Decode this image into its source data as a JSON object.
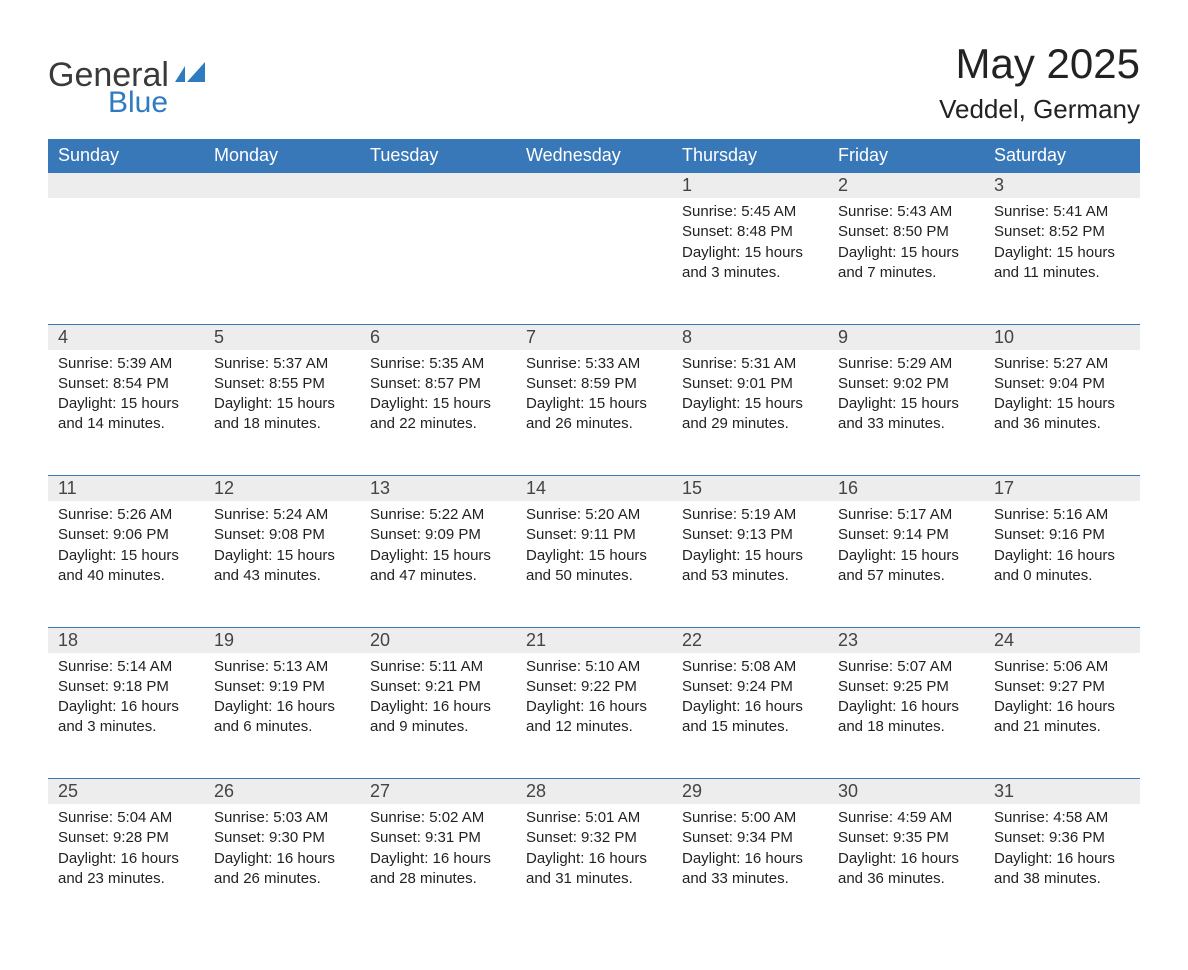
{
  "brand": {
    "part1": "General",
    "part2": "Blue",
    "color1": "#3a3a3a",
    "color2": "#2e7bc0"
  },
  "title": "May 2025",
  "location": "Veddel, Germany",
  "theme": {
    "header_bg": "#3878b8",
    "header_fg": "#ffffff",
    "daynum_bg": "#ededed",
    "rule_color": "#3878b8",
    "body_bg": "#ffffff",
    "text_color": "#222222",
    "font_title": 42,
    "font_location": 26,
    "font_dayhdr": 18,
    "font_daynum": 18,
    "font_body": 15
  },
  "day_headers": [
    "Sunday",
    "Monday",
    "Tuesday",
    "Wednesday",
    "Thursday",
    "Friday",
    "Saturday"
  ],
  "weeks": [
    [
      null,
      null,
      null,
      null,
      {
        "n": "1",
        "sunrise": "5:45 AM",
        "sunset": "8:48 PM",
        "daylight": "15 hours and 3 minutes."
      },
      {
        "n": "2",
        "sunrise": "5:43 AM",
        "sunset": "8:50 PM",
        "daylight": "15 hours and 7 minutes."
      },
      {
        "n": "3",
        "sunrise": "5:41 AM",
        "sunset": "8:52 PM",
        "daylight": "15 hours and 11 minutes."
      }
    ],
    [
      {
        "n": "4",
        "sunrise": "5:39 AM",
        "sunset": "8:54 PM",
        "daylight": "15 hours and 14 minutes."
      },
      {
        "n": "5",
        "sunrise": "5:37 AM",
        "sunset": "8:55 PM",
        "daylight": "15 hours and 18 minutes."
      },
      {
        "n": "6",
        "sunrise": "5:35 AM",
        "sunset": "8:57 PM",
        "daylight": "15 hours and 22 minutes."
      },
      {
        "n": "7",
        "sunrise": "5:33 AM",
        "sunset": "8:59 PM",
        "daylight": "15 hours and 26 minutes."
      },
      {
        "n": "8",
        "sunrise": "5:31 AM",
        "sunset": "9:01 PM",
        "daylight": "15 hours and 29 minutes."
      },
      {
        "n": "9",
        "sunrise": "5:29 AM",
        "sunset": "9:02 PM",
        "daylight": "15 hours and 33 minutes."
      },
      {
        "n": "10",
        "sunrise": "5:27 AM",
        "sunset": "9:04 PM",
        "daylight": "15 hours and 36 minutes."
      }
    ],
    [
      {
        "n": "11",
        "sunrise": "5:26 AM",
        "sunset": "9:06 PM",
        "daylight": "15 hours and 40 minutes."
      },
      {
        "n": "12",
        "sunrise": "5:24 AM",
        "sunset": "9:08 PM",
        "daylight": "15 hours and 43 minutes."
      },
      {
        "n": "13",
        "sunrise": "5:22 AM",
        "sunset": "9:09 PM",
        "daylight": "15 hours and 47 minutes."
      },
      {
        "n": "14",
        "sunrise": "5:20 AM",
        "sunset": "9:11 PM",
        "daylight": "15 hours and 50 minutes."
      },
      {
        "n": "15",
        "sunrise": "5:19 AM",
        "sunset": "9:13 PM",
        "daylight": "15 hours and 53 minutes."
      },
      {
        "n": "16",
        "sunrise": "5:17 AM",
        "sunset": "9:14 PM",
        "daylight": "15 hours and 57 minutes."
      },
      {
        "n": "17",
        "sunrise": "5:16 AM",
        "sunset": "9:16 PM",
        "daylight": "16 hours and 0 minutes."
      }
    ],
    [
      {
        "n": "18",
        "sunrise": "5:14 AM",
        "sunset": "9:18 PM",
        "daylight": "16 hours and 3 minutes."
      },
      {
        "n": "19",
        "sunrise": "5:13 AM",
        "sunset": "9:19 PM",
        "daylight": "16 hours and 6 minutes."
      },
      {
        "n": "20",
        "sunrise": "5:11 AM",
        "sunset": "9:21 PM",
        "daylight": "16 hours and 9 minutes."
      },
      {
        "n": "21",
        "sunrise": "5:10 AM",
        "sunset": "9:22 PM",
        "daylight": "16 hours and 12 minutes."
      },
      {
        "n": "22",
        "sunrise": "5:08 AM",
        "sunset": "9:24 PM",
        "daylight": "16 hours and 15 minutes."
      },
      {
        "n": "23",
        "sunrise": "5:07 AM",
        "sunset": "9:25 PM",
        "daylight": "16 hours and 18 minutes."
      },
      {
        "n": "24",
        "sunrise": "5:06 AM",
        "sunset": "9:27 PM",
        "daylight": "16 hours and 21 minutes."
      }
    ],
    [
      {
        "n": "25",
        "sunrise": "5:04 AM",
        "sunset": "9:28 PM",
        "daylight": "16 hours and 23 minutes."
      },
      {
        "n": "26",
        "sunrise": "5:03 AM",
        "sunset": "9:30 PM",
        "daylight": "16 hours and 26 minutes."
      },
      {
        "n": "27",
        "sunrise": "5:02 AM",
        "sunset": "9:31 PM",
        "daylight": "16 hours and 28 minutes."
      },
      {
        "n": "28",
        "sunrise": "5:01 AM",
        "sunset": "9:32 PM",
        "daylight": "16 hours and 31 minutes."
      },
      {
        "n": "29",
        "sunrise": "5:00 AM",
        "sunset": "9:34 PM",
        "daylight": "16 hours and 33 minutes."
      },
      {
        "n": "30",
        "sunrise": "4:59 AM",
        "sunset": "9:35 PM",
        "daylight": "16 hours and 36 minutes."
      },
      {
        "n": "31",
        "sunrise": "4:58 AM",
        "sunset": "9:36 PM",
        "daylight": "16 hours and 38 minutes."
      }
    ]
  ],
  "labels": {
    "sunrise": "Sunrise:",
    "sunset": "Sunset:",
    "daylight": "Daylight:"
  }
}
